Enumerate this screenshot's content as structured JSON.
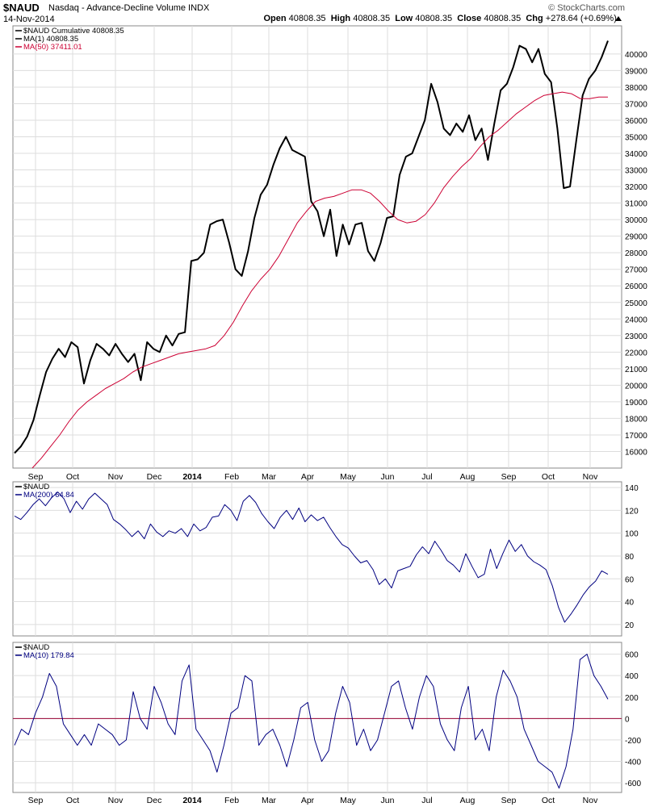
{
  "header": {
    "symbol": "$NAUD",
    "name": "Nasdaq - Advance-Decline Volume",
    "exchange": "INDX",
    "date": "14-Nov-2014",
    "watermark": "© StockCharts.com",
    "open_label": "Open",
    "open": "40808.35",
    "high_label": "High",
    "high": "40808.35",
    "low_label": "Low",
    "low": "40808.35",
    "close_label": "Close",
    "close": "40808.35",
    "chg_label": "Chg",
    "chg": "+278.64 (+0.69%)"
  },
  "chart_data": [
    {
      "type": "line",
      "legend": [
        {
          "label": "$NAUD Cumulative 40808.35",
          "color": "#000000"
        },
        {
          "label": "MA(1) 40808.35",
          "color": "#000000"
        },
        {
          "label": "MA(50) 37411.01",
          "color": "#cc0033"
        }
      ],
      "x_labels": [
        "Sep",
        "Oct",
        "Nov",
        "Dec",
        "2014",
        "Feb",
        "Mar",
        "Apr",
        "May",
        "Jun",
        "Jul",
        "Aug",
        "Sep",
        "Oct",
        "Nov"
      ],
      "y_ticks": [
        16000,
        17000,
        18000,
        19000,
        20000,
        21000,
        22000,
        23000,
        24000,
        25000,
        26000,
        27000,
        28000,
        29000,
        30000,
        31000,
        32000,
        33000,
        34000,
        35000,
        36000,
        37000,
        38000,
        39000,
        40000
      ],
      "ylim": [
        15000,
        41700
      ],
      "grid": true,
      "series": [
        {
          "color": "#000000",
          "values": [
            15900,
            16300,
            16900,
            17900,
            19400,
            20800,
            21600,
            22200,
            21700,
            22600,
            22300,
            20100,
            21500,
            22500,
            22200,
            21800,
            22500,
            21900,
            21400,
            21900,
            20300,
            22600,
            22200,
            22000,
            23000,
            22400,
            23100,
            23200,
            27500,
            27600,
            28000,
            29700,
            29900,
            30000,
            28600,
            27000,
            26600,
            28100,
            30100,
            31500,
            32100,
            33300,
            34300,
            35000,
            34200,
            34000,
            33800,
            31100,
            30500,
            29000,
            30600,
            27800,
            29700,
            28500,
            29700,
            29800,
            28100,
            27500,
            28600,
            30100,
            30200,
            32700,
            33800,
            34000,
            35000,
            36000,
            38200,
            37100,
            35500,
            35100,
            35800,
            35300,
            36300,
            34800,
            35500,
            33600,
            35800,
            37800,
            38200,
            39200,
            40500,
            40300,
            39500,
            40300,
            38800,
            38300,
            35500,
            31900,
            32000,
            34800,
            37500,
            38500,
            39000,
            39800,
            40800
          ]
        },
        {
          "color": "#cc0033",
          "values": [
            15000,
            15600,
            16300,
            17000,
            17800,
            18500,
            19000,
            19400,
            19800,
            20100,
            20400,
            20800,
            21100,
            21300,
            21500,
            21700,
            21900,
            22000,
            22100,
            22200,
            22400,
            23000,
            23800,
            24800,
            25700,
            26400,
            27000,
            27800,
            28800,
            29800,
            30500,
            31100,
            31300,
            31400,
            31600,
            31800,
            31800,
            31600,
            31100,
            30500,
            30000,
            29800,
            29900,
            30300,
            31000,
            31900,
            32600,
            33200,
            33700,
            34400,
            35000,
            35400,
            35900,
            36400,
            36800,
            37200,
            37500,
            37600,
            37700,
            37600,
            37300,
            37300,
            37400,
            37400
          ]
        }
      ]
    },
    {
      "type": "line",
      "legend": [
        {
          "label": "$NAUD",
          "color": "#000000"
        },
        {
          "label": "MA(200) 64.84",
          "color": "#000080"
        }
      ],
      "y_ticks": [
        20,
        40,
        60,
        80,
        100,
        120,
        140
      ],
      "ylim": [
        10,
        145
      ],
      "grid": true,
      "series": [
        {
          "color": "#000080",
          "values": [
            115,
            112,
            118,
            125,
            130,
            124,
            131,
            136,
            130,
            118,
            128,
            121,
            130,
            135,
            130,
            125,
            112,
            108,
            103,
            97,
            102,
            95,
            108,
            101,
            97,
            102,
            100,
            104,
            97,
            108,
            102,
            105,
            114,
            115,
            125,
            120,
            111,
            128,
            133,
            127,
            117,
            110,
            104,
            114,
            120,
            112,
            122,
            110,
            116,
            111,
            114,
            105,
            97,
            90,
            87,
            80,
            74,
            76,
            68,
            55,
            60,
            52,
            67,
            69,
            71,
            81,
            88,
            82,
            93,
            85,
            76,
            72,
            66,
            82,
            71,
            61,
            64,
            86,
            69,
            82,
            94,
            84,
            90,
            80,
            75,
            72,
            68,
            54,
            35,
            22,
            29,
            37,
            46,
            53,
            58,
            67,
            64
          ]
        }
      ]
    },
    {
      "type": "line",
      "legend": [
        {
          "label": "$NAUD",
          "color": "#000000"
        },
        {
          "label": "MA(10) 179.84",
          "color": "#000080"
        }
      ],
      "y_ticks": [
        -600,
        -400,
        -200,
        0,
        200,
        400,
        600
      ],
      "ylim": [
        -690,
        710
      ],
      "grid": true,
      "zero_line_color": "#990033",
      "series": [
        {
          "color": "#000080",
          "values": [
            -250,
            -100,
            -150,
            50,
            200,
            420,
            300,
            -50,
            -150,
            -250,
            -150,
            -250,
            -50,
            -100,
            -150,
            -250,
            -200,
            250,
            0,
            -100,
            300,
            150,
            -50,
            -150,
            350,
            500,
            -100,
            -200,
            -300,
            -500,
            -250,
            50,
            100,
            400,
            350,
            -250,
            -150,
            -100,
            -250,
            -450,
            -200,
            100,
            150,
            -200,
            -400,
            -300,
            50,
            300,
            150,
            -250,
            -100,
            -300,
            -200,
            50,
            300,
            350,
            100,
            -100,
            200,
            400,
            300,
            -50,
            -200,
            -300,
            100,
            300,
            -200,
            -100,
            -300,
            200,
            450,
            350,
            200,
            -100,
            -250,
            -400,
            -450,
            -500,
            -650,
            -450,
            -100,
            550,
            600,
            400,
            300,
            180
          ]
        }
      ]
    }
  ]
}
